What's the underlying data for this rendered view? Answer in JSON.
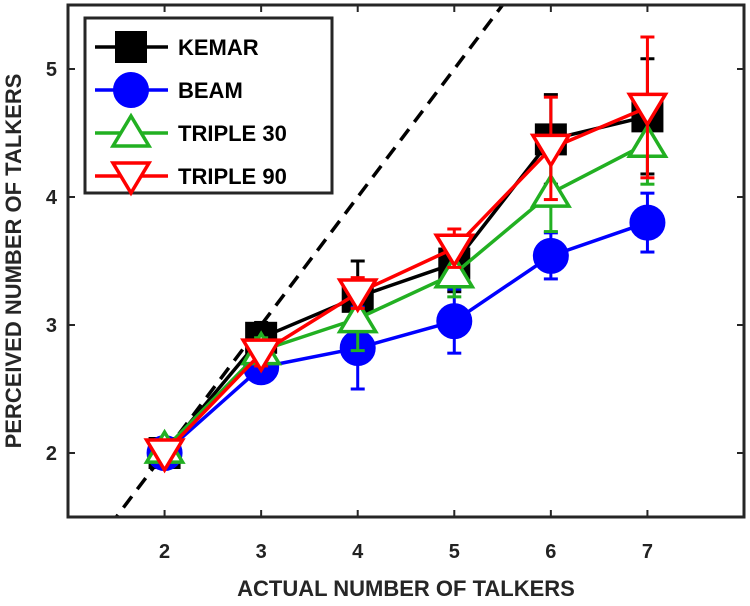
{
  "chart_data": {
    "type": "line",
    "xlabel": "ACTUAL NUMBER OF TALKERS",
    "ylabel": "PERCEIVED NUMBER OF TALKERS",
    "xlim": [
      1,
      8
    ],
    "ylim": [
      1.5,
      5.5
    ],
    "xticks": [
      2,
      3,
      4,
      5,
      6,
      7
    ],
    "yticks": [
      2,
      3,
      4,
      5
    ],
    "reference_line": {
      "style": "dashed",
      "color": "#000000",
      "slope": 1,
      "intercept": 0
    },
    "grid": false,
    "legend_position": "top-left",
    "x": [
      2,
      3,
      4,
      5,
      6,
      7
    ],
    "series": [
      {
        "name": "KEMAR",
        "color": "#000000",
        "marker": "square",
        "values": [
          2.0,
          2.9,
          3.22,
          3.48,
          4.45,
          4.63
        ],
        "error": [
          0.05,
          0.12,
          0.28,
          0.22,
          0.35,
          0.45
        ]
      },
      {
        "name": "BEAM",
        "color": "#0000ff",
        "marker": "circle",
        "values": [
          2.0,
          2.67,
          2.82,
          3.03,
          3.54,
          3.8
        ],
        "error": [
          0.05,
          0.08,
          0.32,
          0.25,
          0.18,
          0.23
        ]
      },
      {
        "name": "TRIPLE 30",
        "color": "#22b022",
        "marker": "triangle-up",
        "values": [
          2.03,
          2.8,
          3.05,
          3.4,
          4.03,
          4.42
        ],
        "error": [
          0.05,
          0.1,
          0.25,
          0.18,
          0.3,
          0.32
        ]
      },
      {
        "name": "TRIPLE 90",
        "color": "#ff0000",
        "marker": "triangle-down",
        "values": [
          2.0,
          2.78,
          3.25,
          3.6,
          4.38,
          4.7
        ],
        "error": [
          0.05,
          0.1,
          0.12,
          0.15,
          0.4,
          0.55
        ]
      }
    ]
  }
}
